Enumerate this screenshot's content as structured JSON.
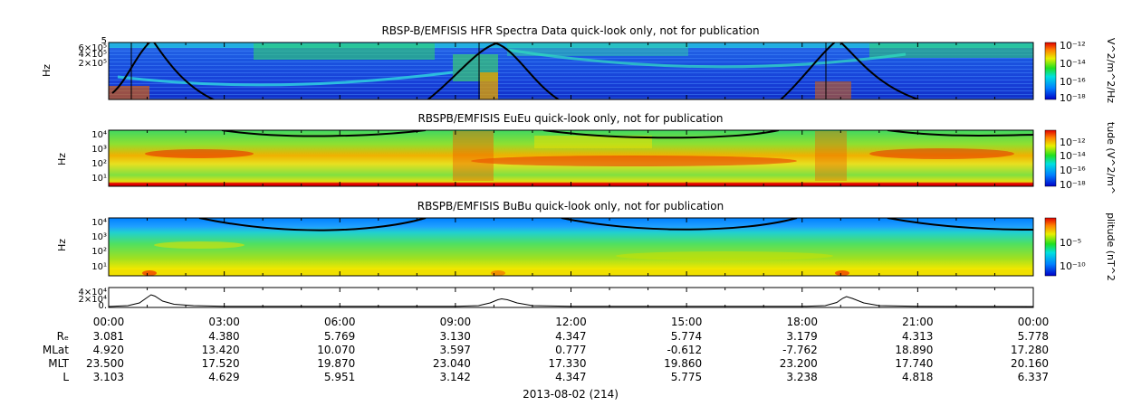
{
  "panels": [
    {
      "title": "RBSP-B/EMFISIS  HFR Spectra Data quick-look only, not for publication",
      "ylabel": "Hz",
      "yticks": [
        "5",
        "6×10⁵",
        "4×10⁵",
        "2×10⁵"
      ],
      "colorbar_label": "V^2/m^2/Hz",
      "colorbar_ticks": [
        "10⁻¹²",
        "10⁻¹⁴",
        "10⁻¹⁶",
        "10⁻¹⁸"
      ]
    },
    {
      "title": "RBSPB/EMFISIS  EuEu quick-look only, not for publication",
      "ylabel": "Hz",
      "yticks": [
        "10⁴",
        "10³",
        "10²",
        "10¹"
      ],
      "colorbar_label": "tude (V^2/m^",
      "colorbar_ticks": [
        "10⁻¹²",
        "10⁻¹⁴",
        "10⁻¹⁶",
        "10⁻¹⁸"
      ]
    },
    {
      "title": "RBSPB/EMFISIS  BuBu quick-look only, not for publication",
      "ylabel": "Hz",
      "yticks": [
        "10⁴",
        "10³",
        "10²",
        "10¹"
      ],
      "colorbar_label": "plitude (nT^2",
      "colorbar_ticks": [
        "10⁻⁵",
        "10⁻¹⁰"
      ]
    }
  ],
  "line_panel": {
    "yticks": [
      "4×10⁴",
      "2×10⁴",
      "0."
    ]
  },
  "time_axis": {
    "ticks": [
      "00:00",
      "03:00",
      "06:00",
      "09:00",
      "12:00",
      "15:00",
      "18:00",
      "21:00",
      "00:00"
    ]
  },
  "ephemeris": {
    "labels": [
      "Rₑ",
      "MLat",
      "MLT",
      "L"
    ],
    "rows": [
      [
        "3.081",
        "4.380",
        "5.769",
        "3.130",
        "4.347",
        "5.774",
        "3.179",
        "4.313",
        "5.778"
      ],
      [
        "4.920",
        "13.420",
        "10.070",
        "3.597",
        "0.777",
        "-0.612",
        "-7.762",
        "18.890",
        "17.280"
      ],
      [
        "23.500",
        "17.520",
        "19.870",
        "23.040",
        "17.330",
        "19.860",
        "23.200",
        "17.740",
        "20.160"
      ],
      [
        "3.103",
        "4.629",
        "5.951",
        "3.142",
        "4.347",
        "5.775",
        "3.238",
        "4.818",
        "6.337"
      ]
    ]
  },
  "date_label": "2013-08-02 (214)",
  "chart_data": [
    {
      "type": "heatmap",
      "title": "RBSP-B/EMFISIS  HFR Spectra Data quick-look only, not for publication",
      "ylabel": "Hz",
      "x_range": [
        "00:00",
        "00:00"
      ],
      "colorbar": {
        "label": "V^2/m^2/Hz",
        "range": [
          "10^-18",
          "10^-12"
        ]
      },
      "overlay_peak_times_hours": [
        1.1,
        10.2,
        19.1
      ]
    },
    {
      "type": "heatmap",
      "title": "RBSPB/EMFISIS  EuEu quick-look only, not for publication",
      "ylabel": "Hz",
      "y_range": [
        "10^0",
        "10^4"
      ],
      "colorbar": {
        "label": "tude (V^2/m^",
        "range": [
          "10^-18",
          "10^-12"
        ]
      }
    },
    {
      "type": "heatmap",
      "title": "RBSPB/EMFISIS  BuBu quick-look only, not for publication",
      "ylabel": "Hz",
      "y_range": [
        "10^0",
        "10^4"
      ],
      "colorbar": {
        "label": "plitude (nT^2",
        "range": [
          "10^-10",
          "10^-5"
        ]
      }
    },
    {
      "type": "line",
      "ylim": [
        0,
        40000
      ],
      "x": [
        0,
        0.5,
        0.8,
        1.0,
        1.1,
        1.2,
        1.4,
        1.7,
        2.2,
        3.0,
        9.0,
        9.6,
        9.9,
        10.1,
        10.2,
        10.35,
        10.6,
        11.0,
        12.0,
        18.0,
        18.6,
        18.9,
        19.05,
        19.15,
        19.3,
        19.6,
        20.0,
        21.0,
        24.0
      ],
      "y": [
        0,
        2000,
        8000,
        20000,
        26000,
        23000,
        12000,
        5000,
        2000,
        500,
        500,
        2000,
        8000,
        15000,
        17000,
        15000,
        8000,
        2000,
        500,
        500,
        2000,
        9000,
        18000,
        22000,
        18000,
        8000,
        2000,
        500,
        0
      ]
    }
  ]
}
